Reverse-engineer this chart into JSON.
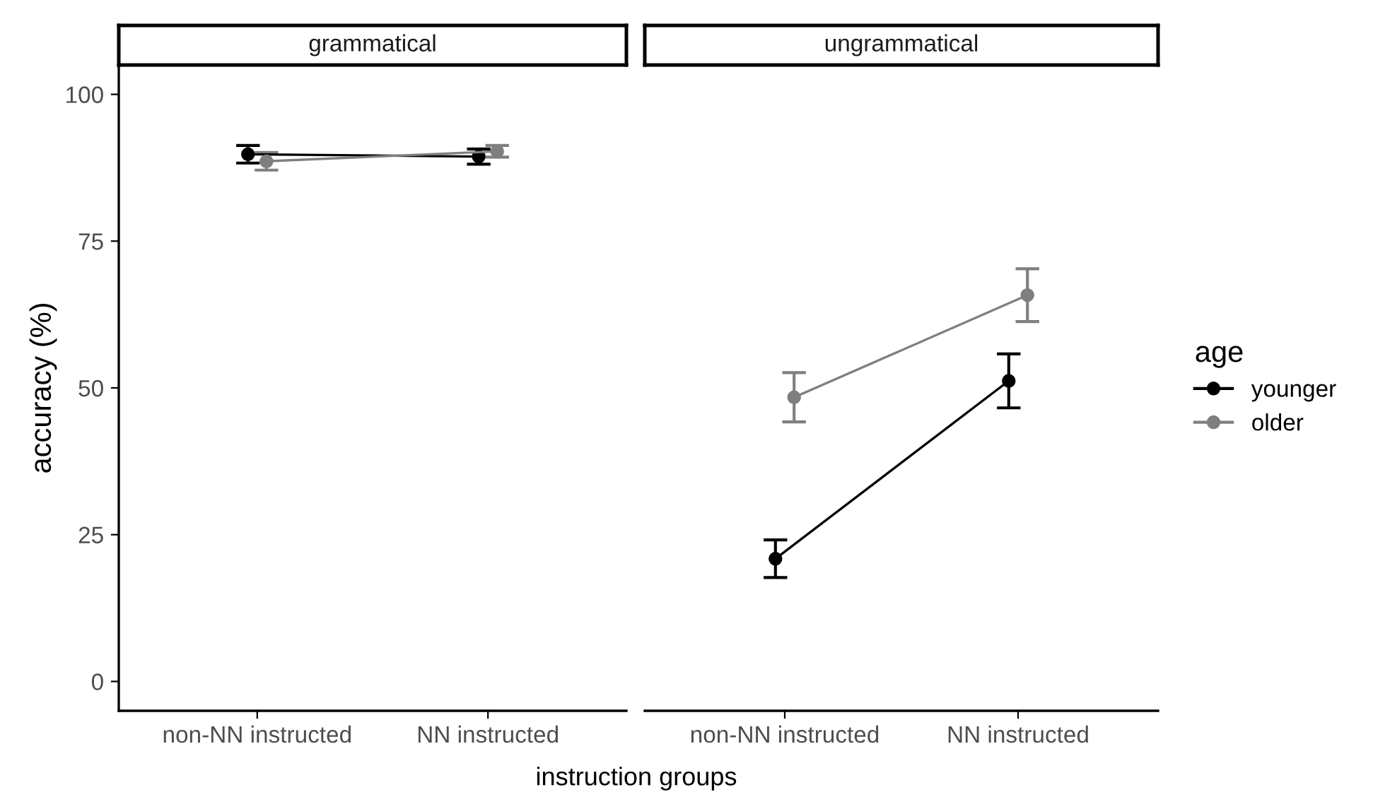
{
  "chart_data": [
    {
      "type": "line",
      "title": "grammatical",
      "ylabel": "accuracy (%)",
      "xlabel": "instruction groups",
      "categories": [
        "non-NN instructed",
        "NN instructed"
      ],
      "ylim": [
        -5,
        105
      ],
      "yticks": [
        0,
        25,
        50,
        75,
        100
      ],
      "grid": false,
      "legend": false,
      "marker": "circle",
      "line_style": "solid",
      "series": [
        {
          "color": "#000000",
          "values": [
            89.8,
            89.4
          ],
          "errors": [
            1.5,
            1.3
          ]
        },
        {
          "color": "#7f7f7f",
          "values": [
            88.6,
            90.3
          ],
          "errors": [
            1.5,
            1.0
          ]
        }
      ]
    },
    {
      "type": "line",
      "title": "ungrammatical",
      "legend_title": "age",
      "categories": [
        "non-NN instructed",
        "NN instructed"
      ],
      "ylim": [
        -5,
        105
      ],
      "yticks": [
        0,
        25,
        50,
        75,
        100
      ],
      "tick_labels": "x",
      "grid": false,
      "legend": "right",
      "marker": "circle",
      "line_style": "solid",
      "series": [
        {
          "name": "younger",
          "color": "#000000",
          "values": [
            20.9,
            51.2
          ],
          "errors": [
            3.2,
            4.6
          ]
        },
        {
          "name": "older",
          "color": "#7f7f7f",
          "values": [
            48.4,
            65.8
          ],
          "errors": [
            4.2,
            4.5
          ]
        }
      ]
    }
  ]
}
